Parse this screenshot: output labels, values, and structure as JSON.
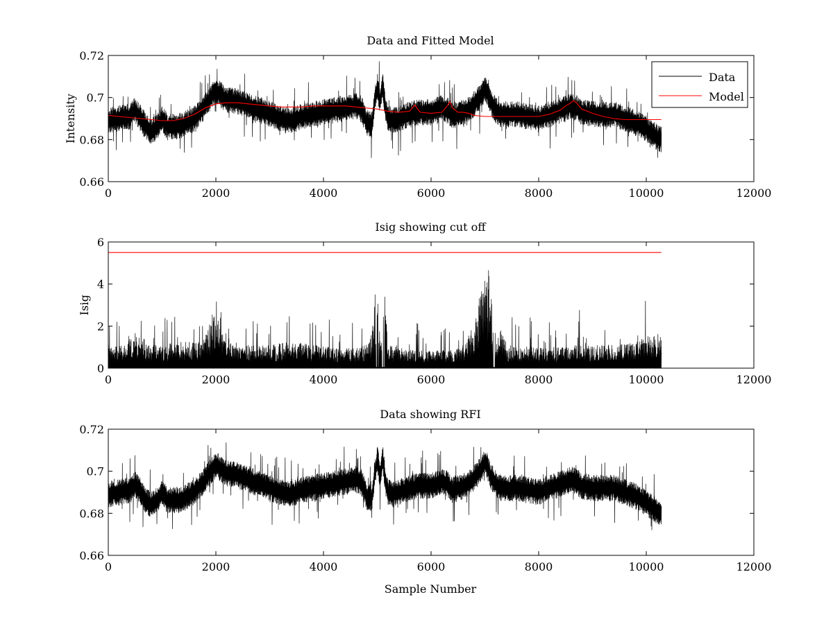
{
  "figure": {
    "background": "#ffffff"
  },
  "chart_data": [
    {
      "type": "line",
      "title": "Data and Fitted Model",
      "xlabel": "",
      "ylabel": "Intensity",
      "xlim": [
        0,
        12000
      ],
      "ylim": [
        0.66,
        0.72
      ],
      "xticks": [
        0,
        2000,
        4000,
        6000,
        8000,
        10000,
        12000
      ],
      "xtick_labels": [
        "0",
        "2000",
        "4000",
        "6000",
        "8000",
        "10000",
        "12000"
      ],
      "yticks": [
        0.66,
        0.68,
        0.7,
        0.72
      ],
      "ytick_labels": [
        "0.66",
        "0.68",
        "0.7",
        "0.72"
      ],
      "grid": false,
      "legend": {
        "position": "top-right",
        "entries": [
          "Data",
          "Model"
        ]
      },
      "series": [
        {
          "name": "Data",
          "color": "#000000",
          "render": "noisy",
          "x": [
            0,
            200,
            400,
            500,
            600,
            700,
            800,
            900,
            1000,
            1100,
            1200,
            1400,
            1600,
            1800,
            1900,
            2000,
            2100,
            2200,
            2400,
            2600,
            2800,
            3000,
            3200,
            3400,
            3600,
            3800,
            4000,
            4200,
            4400,
            4600,
            4700,
            4800,
            4900,
            4950,
            5000,
            5050,
            5100,
            5150,
            5200,
            5300,
            5400,
            5600,
            5800,
            6000,
            6200,
            6300,
            6400,
            6600,
            6700,
            6800,
            6900,
            7000,
            7050,
            7100,
            7200,
            7300,
            7400,
            7600,
            7800,
            8000,
            8200,
            8400,
            8600,
            8700,
            8800,
            9000,
            9200,
            9400,
            9600,
            9800,
            10000,
            10100,
            10200,
            10280
          ],
          "values": [
            0.689,
            0.69,
            0.691,
            0.694,
            0.69,
            0.686,
            0.684,
            0.686,
            0.69,
            0.686,
            0.686,
            0.687,
            0.69,
            0.696,
            0.7,
            0.703,
            0.701,
            0.699,
            0.698,
            0.696,
            0.694,
            0.692,
            0.69,
            0.689,
            0.691,
            0.692,
            0.693,
            0.694,
            0.695,
            0.696,
            0.695,
            0.688,
            0.687,
            0.698,
            0.706,
            0.698,
            0.706,
            0.695,
            0.69,
            0.689,
            0.69,
            0.692,
            0.693,
            0.693,
            0.695,
            0.694,
            0.691,
            0.693,
            0.694,
            0.697,
            0.7,
            0.704,
            0.702,
            0.698,
            0.694,
            0.692,
            0.692,
            0.692,
            0.691,
            0.69,
            0.692,
            0.694,
            0.696,
            0.695,
            0.693,
            0.692,
            0.692,
            0.692,
            0.69,
            0.688,
            0.685,
            0.683,
            0.681,
            0.68
          ],
          "noise_amplitude": 0.0045,
          "spike_amplitude": 0.012
        },
        {
          "name": "Model",
          "color": "#ff0000",
          "render": "line",
          "x": [
            0,
            200,
            400,
            600,
            800,
            1000,
            1200,
            1400,
            1600,
            1800,
            2000,
            2200,
            2400,
            2600,
            2800,
            3000,
            3200,
            3400,
            3600,
            3800,
            4000,
            4200,
            4400,
            4600,
            4800,
            5000,
            5200,
            5400,
            5600,
            5650,
            5700,
            5750,
            5800,
            6000,
            6200,
            6300,
            6350,
            6400,
            6500,
            6600,
            6700,
            6800,
            7000,
            7200,
            7400,
            7600,
            7800,
            8000,
            8200,
            8400,
            8500,
            8600,
            8650,
            8700,
            8800,
            9000,
            9200,
            9400,
            9600,
            9800,
            10000,
            10280
          ],
          "values": [
            0.6915,
            0.691,
            0.6905,
            0.69,
            0.6895,
            0.689,
            0.689,
            0.69,
            0.692,
            0.695,
            0.697,
            0.6975,
            0.6975,
            0.697,
            0.6965,
            0.696,
            0.6955,
            0.6955,
            0.6955,
            0.696,
            0.696,
            0.696,
            0.696,
            0.6955,
            0.695,
            0.6945,
            0.6935,
            0.693,
            0.6935,
            0.695,
            0.6965,
            0.6945,
            0.693,
            0.6925,
            0.693,
            0.696,
            0.698,
            0.695,
            0.693,
            0.693,
            0.6925,
            0.6915,
            0.691,
            0.691,
            0.691,
            0.691,
            0.691,
            0.691,
            0.692,
            0.694,
            0.696,
            0.6975,
            0.6985,
            0.6975,
            0.6945,
            0.6925,
            0.691,
            0.69,
            0.6895,
            0.6895,
            0.6895,
            0.6895
          ]
        }
      ]
    },
    {
      "type": "line",
      "title": "Isig showing cut off",
      "xlabel": "",
      "ylabel": "Isig",
      "xlim": [
        0,
        12000
      ],
      "ylim": [
        0,
        6
      ],
      "xticks": [
        0,
        2000,
        4000,
        6000,
        8000,
        10000,
        12000
      ],
      "xtick_labels": [
        "0",
        "2000",
        "4000",
        "6000",
        "8000",
        "10000",
        "12000"
      ],
      "yticks": [
        0,
        2,
        4,
        6
      ],
      "ytick_labels": [
        "0",
        "2",
        "4",
        "6"
      ],
      "grid": false,
      "series": [
        {
          "color": "#000000",
          "render": "isig",
          "x": [
            0,
            300,
            500,
            700,
            1000,
            1300,
            1600,
            1800,
            1900,
            2000,
            2100,
            2300,
            2600,
            3000,
            3400,
            3800,
            4200,
            4600,
            4800,
            4900,
            4950,
            5000,
            5050,
            5100,
            5150,
            5200,
            5400,
            5800,
            6200,
            6600,
            6700,
            6800,
            6900,
            7000,
            7100,
            7200,
            7300,
            7400,
            7700,
            8200,
            8800,
            9400,
            9800,
            10000,
            10280
          ],
          "values": [
            0.7,
            0.8,
            1.2,
            0.8,
            0.8,
            0.9,
            0.9,
            1.2,
            1.6,
            2.4,
            1.3,
            0.9,
            0.8,
            0.8,
            0.9,
            0.8,
            0.7,
            0.7,
            0.8,
            1.2,
            2.5,
            2.8,
            1.0,
            2.5,
            2.7,
            0.8,
            0.7,
            0.6,
            0.6,
            0.7,
            1.2,
            1.8,
            2.6,
            3.2,
            2.6,
            1.2,
            1.4,
            0.8,
            0.7,
            0.7,
            0.8,
            0.8,
            0.9,
            1.1,
            1.3
          ],
          "spike_amplitude": 1.8,
          "dips": [
            [
              4960,
              5040
            ],
            [
              5080,
              5130
            ],
            [
              6720,
              6760
            ],
            [
              7130,
              7200
            ]
          ]
        },
        {
          "color": "#ff0000",
          "render": "line",
          "x": [
            0,
            10280
          ],
          "values": [
            5.5,
            5.5
          ]
        }
      ]
    },
    {
      "type": "line",
      "title": "Data showing RFI",
      "xlabel": "Sample Number",
      "ylabel": "",
      "xlim": [
        0,
        12000
      ],
      "ylim": [
        0.66,
        0.72
      ],
      "xticks": [
        0,
        2000,
        4000,
        6000,
        8000,
        10000,
        12000
      ],
      "xtick_labels": [
        "0",
        "2000",
        "4000",
        "6000",
        "8000",
        "10000",
        "12000"
      ],
      "yticks": [
        0.66,
        0.68,
        0.7,
        0.72
      ],
      "ytick_labels": [
        "0.66",
        "0.68",
        "0.7",
        "0.72"
      ],
      "grid": false,
      "series": [
        {
          "color": "#000000",
          "render": "noisy",
          "x": [
            0,
            200,
            400,
            500,
            600,
            700,
            800,
            900,
            1000,
            1100,
            1200,
            1400,
            1600,
            1800,
            1900,
            2000,
            2100,
            2200,
            2400,
            2600,
            2800,
            3000,
            3200,
            3400,
            3600,
            3800,
            4000,
            4200,
            4400,
            4600,
            4700,
            4800,
            4900,
            4950,
            5000,
            5050,
            5100,
            5150,
            5200,
            5300,
            5400,
            5600,
            5800,
            6000,
            6200,
            6300,
            6400,
            6600,
            6700,
            6800,
            6900,
            7000,
            7050,
            7100,
            7200,
            7300,
            7400,
            7600,
            7800,
            8000,
            8200,
            8400,
            8600,
            8700,
            8800,
            9000,
            9200,
            9400,
            9600,
            9800,
            10000,
            10100,
            10200,
            10280
          ],
          "values": [
            0.689,
            0.69,
            0.691,
            0.694,
            0.69,
            0.686,
            0.684,
            0.686,
            0.69,
            0.686,
            0.686,
            0.687,
            0.69,
            0.696,
            0.7,
            0.703,
            0.701,
            0.699,
            0.698,
            0.696,
            0.694,
            0.692,
            0.69,
            0.689,
            0.691,
            0.692,
            0.693,
            0.694,
            0.695,
            0.696,
            0.695,
            0.688,
            0.687,
            0.698,
            0.706,
            0.698,
            0.706,
            0.695,
            0.69,
            0.689,
            0.69,
            0.692,
            0.693,
            0.693,
            0.695,
            0.694,
            0.691,
            0.693,
            0.694,
            0.697,
            0.7,
            0.704,
            0.702,
            0.698,
            0.694,
            0.692,
            0.692,
            0.692,
            0.691,
            0.69,
            0.692,
            0.694,
            0.696,
            0.695,
            0.693,
            0.692,
            0.692,
            0.692,
            0.69,
            0.688,
            0.685,
            0.683,
            0.681,
            0.68
          ],
          "noise_amplitude": 0.0045,
          "spike_amplitude": 0.012
        }
      ]
    }
  ]
}
